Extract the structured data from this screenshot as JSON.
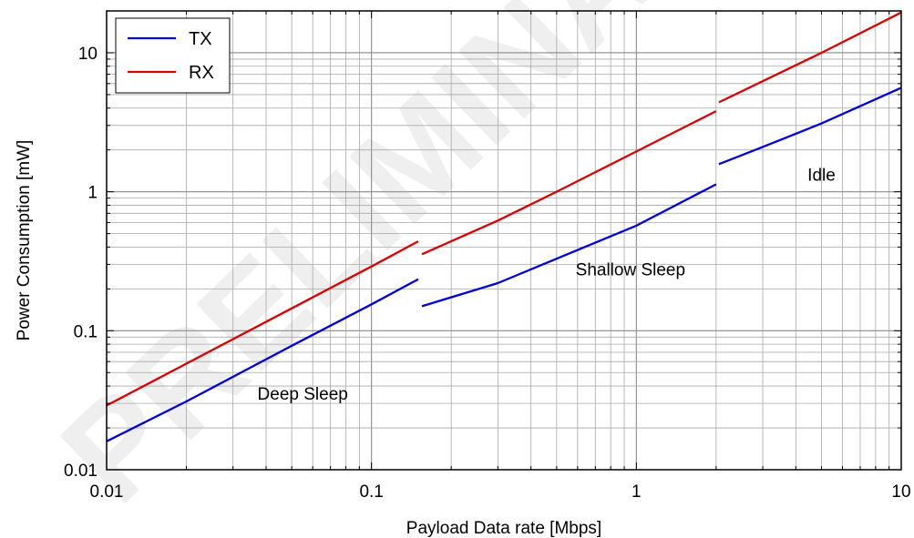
{
  "chart_data": {
    "type": "line",
    "xlabel": "Payload Data rate [Mbps]",
    "ylabel": "Power Consumption [mW]",
    "xscale": "log",
    "yscale": "log",
    "xlim": [
      0.01,
      10
    ],
    "ylim": [
      0.01,
      20
    ],
    "grid": true,
    "legend_position": "top-left",
    "x_tick_labels": [
      "0.01",
      "0.1",
      "1",
      "10"
    ],
    "y_tick_labels": [
      "0.01",
      "0.1",
      "1",
      "10"
    ],
    "watermark": "PRELIMINARY",
    "annotations": [
      {
        "text": "Deep Sleep",
        "x": 0.055,
        "y": 0.032
      },
      {
        "text": "Shallow Sleep",
        "x": 0.95,
        "y": 0.25
      },
      {
        "text": "Idle",
        "x": 5.0,
        "y": 1.2
      }
    ],
    "series": [
      {
        "name": "TX",
        "color": "#0000dd",
        "segments": [
          {
            "x": [
              0.01,
              0.02,
              0.05,
              0.1,
              0.15
            ],
            "y": [
              0.016,
              0.031,
              0.078,
              0.155,
              0.235
            ]
          },
          {
            "x": [
              0.155,
              0.3,
              0.5,
              1.0,
              2.0
            ],
            "y": [
              0.15,
              0.22,
              0.33,
              0.57,
              1.13
            ]
          },
          {
            "x": [
              2.05,
              3.0,
              5.0,
              10.0
            ],
            "y": [
              1.58,
              2.1,
              3.1,
              5.6
            ]
          }
        ]
      },
      {
        "name": "RX",
        "color": "#dd0000",
        "segments": [
          {
            "x": [
              0.01,
              0.05,
              0.1,
              0.15
            ],
            "y": [
              0.029,
              0.145,
              0.29,
              0.44
            ]
          },
          {
            "x": [
              0.155,
              0.3,
              0.5,
              1.0,
              2.0
            ],
            "y": [
              0.355,
              0.62,
              1.0,
              1.95,
              3.8
            ]
          },
          {
            "x": [
              2.05,
              5.0,
              10.0
            ],
            "y": [
              4.4,
              10.0,
              19.5
            ]
          }
        ]
      }
    ]
  }
}
